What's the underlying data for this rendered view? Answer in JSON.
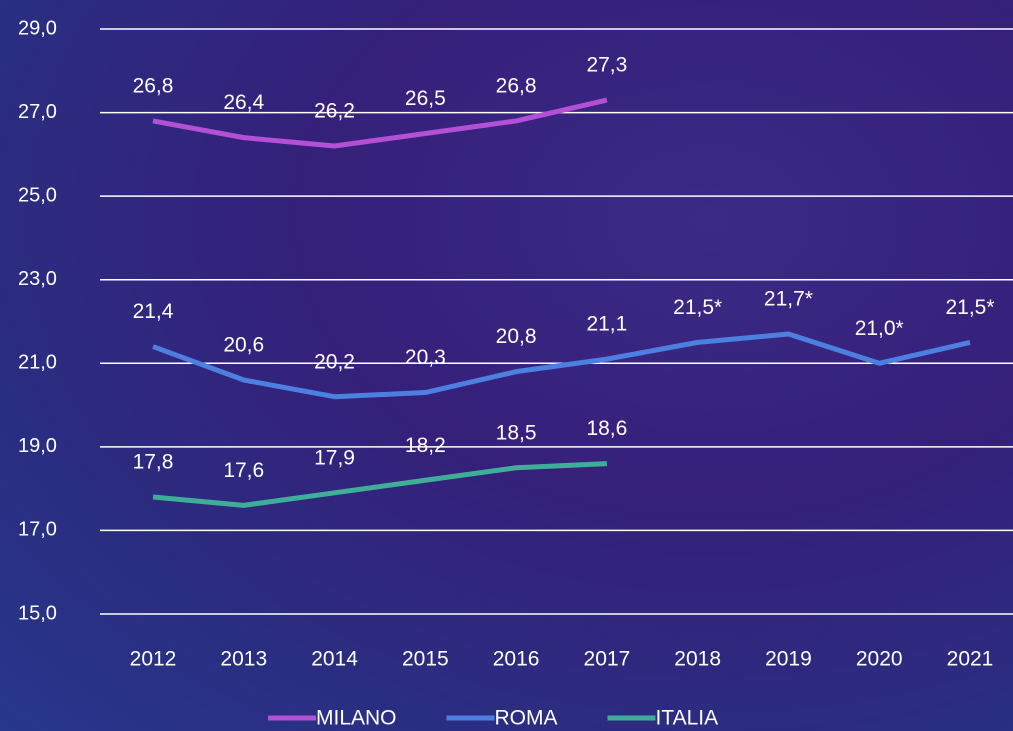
{
  "chart_data": {
    "type": "line",
    "categories": [
      "2012",
      "2013",
      "2014",
      "2015",
      "2016",
      "2017",
      "2018",
      "2019",
      "2020",
      "2021"
    ],
    "series": [
      {
        "name": "MILANO",
        "color": "#b350d6",
        "values": [
          26.8,
          26.4,
          26.2,
          26.5,
          26.8,
          27.3,
          null,
          null,
          null,
          null
        ],
        "value_labels": [
          "26,8",
          "26,4",
          "26,2",
          "26,5",
          "26,8",
          "27,3",
          null,
          null,
          null,
          null
        ]
      },
      {
        "name": "ROMA",
        "color": "#4d7fe0",
        "values": [
          21.4,
          20.6,
          20.2,
          20.3,
          20.8,
          21.1,
          21.5,
          21.7,
          21.0,
          21.5
        ],
        "value_labels": [
          "21,4",
          "20,6",
          "20,2",
          "20,3",
          "20,8",
          "21,1",
          "21,5*",
          "21,7*",
          "21,0*",
          "21,5*"
        ]
      },
      {
        "name": "ITALIA",
        "color": "#3fae98",
        "values": [
          17.8,
          17.6,
          17.9,
          18.2,
          18.5,
          18.6,
          null,
          null,
          null,
          null
        ],
        "value_labels": [
          "17,8",
          "17,6",
          "17,9",
          "18,2",
          "18,5",
          "18,6",
          null,
          null,
          null,
          null
        ]
      }
    ],
    "ylim": [
      15,
      29
    ],
    "yticks": [
      {
        "value": 15,
        "label": "15,0"
      },
      {
        "value": 17,
        "label": "17,0"
      },
      {
        "value": 19,
        "label": "19,0"
      },
      {
        "value": 21,
        "label": "21,0"
      },
      {
        "value": 23,
        "label": "23,0"
      },
      {
        "value": 25,
        "label": "25,0"
      },
      {
        "value": 27,
        "label": "27,0"
      },
      {
        "value": 29,
        "label": "29,0"
      }
    ],
    "grid": true,
    "legend": "bottom"
  }
}
